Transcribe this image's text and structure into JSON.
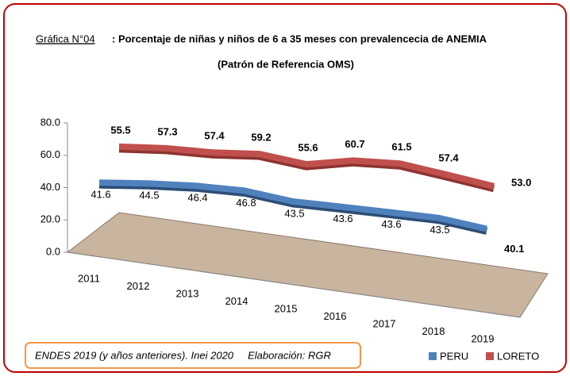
{
  "chart_data": {
    "type": "line3d",
    "title_prefix": "Gráfica N°04",
    "title": ": Porcentaje de niñas y niños de 6 a 35 meses con prevalencecia de ANEMIA",
    "subtitle": "(Patrón de Referencia OMS)",
    "note": "ENDES 2019 (y años anteriores). Inei 2020     Elaboración: RGR",
    "categories": [
      "2011",
      "2012",
      "2013",
      "2014",
      "2015",
      "2016",
      "2017",
      "2018",
      "2019"
    ],
    "series": [
      {
        "name": "PERU",
        "color": "#4f81bd",
        "values": [
          41.6,
          44.5,
          46.4,
          46.8,
          43.5,
          43.6,
          43.6,
          43.5,
          40.1
        ]
      },
      {
        "name": "LORETO",
        "color": "#c0504d",
        "values": [
          55.5,
          57.3,
          57.4,
          59.2,
          55.6,
          60.7,
          61.5,
          57.4,
          53.0
        ],
        "value_labels": [
          "55.5",
          "57.3",
          "57.4",
          "59.2",
          "55.6",
          "60.7",
          "61.5",
          "57.4",
          "53.0"
        ]
      }
    ],
    "ylim": [
      0,
      80
    ],
    "yticks": [
      {
        "value": 0,
        "label": "0.0"
      },
      {
        "value": 20,
        "label": "20.0"
      },
      {
        "value": 40,
        "label": "40.0"
      },
      {
        "value": 60,
        "label": "60.0"
      },
      {
        "value": 80,
        "label": "80.0"
      }
    ]
  }
}
